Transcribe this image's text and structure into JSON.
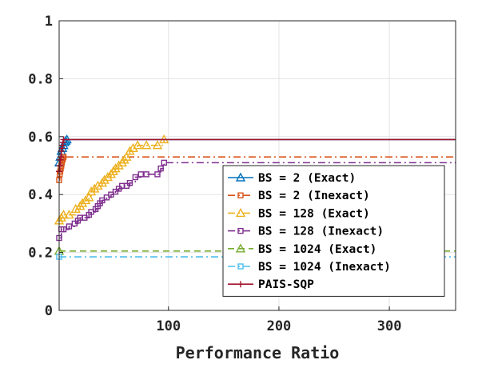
{
  "chart_data": {
    "type": "line",
    "title": "",
    "xlabel": "Performance Ratio",
    "ylabel": "",
    "xlim": [
      1,
      360
    ],
    "ylim": [
      0,
      1
    ],
    "xticks": [
      100,
      200,
      300
    ],
    "yticks": [
      0,
      0.2,
      0.4,
      0.6,
      0.8,
      1
    ],
    "ytick_labels": [
      "0",
      "0.2",
      "0.4",
      "0.6",
      "0.8",
      "1"
    ],
    "grid": true,
    "legend_position": "lower-right",
    "series": [
      {
        "name": "BS = 2 (Exact)",
        "color": "#0072BD",
        "style": "solid",
        "marker": "triangle",
        "x": [
          1,
          2,
          3,
          4,
          5,
          6,
          7,
          8,
          360
        ],
        "y": [
          0.51,
          0.53,
          0.55,
          0.56,
          0.57,
          0.58,
          0.585,
          0.59,
          0.59
        ]
      },
      {
        "name": "BS = 2 (Inexact)",
        "color": "#D95319",
        "style": "dashdot",
        "marker": "square",
        "x": [
          1,
          1.5,
          2,
          2.5,
          3,
          3.5,
          4,
          4.5,
          5,
          360
        ],
        "y": [
          0.45,
          0.47,
          0.48,
          0.49,
          0.5,
          0.51,
          0.52,
          0.525,
          0.53,
          0.53
        ]
      },
      {
        "name": "BS = 128 (Exact)",
        "color": "#EDB120",
        "style": "dashdot",
        "marker": "triangle",
        "x": [
          1,
          3,
          5,
          10,
          16,
          20,
          22,
          25,
          28,
          30,
          33,
          36,
          40,
          42,
          45,
          48,
          50,
          52,
          55,
          58,
          60,
          62,
          65,
          68,
          72,
          80,
          90,
          96
        ],
        "y": [
          0.31,
          0.32,
          0.33,
          0.33,
          0.35,
          0.36,
          0.37,
          0.38,
          0.39,
          0.41,
          0.42,
          0.43,
          0.44,
          0.45,
          0.46,
          0.47,
          0.48,
          0.49,
          0.5,
          0.51,
          0.52,
          0.53,
          0.55,
          0.56,
          0.57,
          0.57,
          0.57,
          0.59
        ]
      },
      {
        "name": "BS = 128 (Inexact)",
        "color": "#7E2F8E",
        "style": "dashdot",
        "marker": "square",
        "x": [
          1,
          3,
          5,
          10,
          15,
          18,
          20,
          24,
          28,
          30,
          34,
          36,
          38,
          40,
          44,
          48,
          52,
          55,
          58,
          62,
          65,
          70,
          75,
          80,
          90,
          93,
          96,
          360
        ],
        "y": [
          0.25,
          0.28,
          0.28,
          0.29,
          0.3,
          0.31,
          0.32,
          0.32,
          0.33,
          0.34,
          0.35,
          0.36,
          0.37,
          0.38,
          0.39,
          0.4,
          0.41,
          0.42,
          0.43,
          0.43,
          0.44,
          0.46,
          0.47,
          0.47,
          0.47,
          0.49,
          0.51,
          0.51
        ]
      },
      {
        "name": "BS = 1024 (Exact)",
        "color": "#77AC30",
        "style": "dashed",
        "marker": "triangle",
        "x": [
          1,
          360
        ],
        "y": [
          0.205,
          0.205
        ]
      },
      {
        "name": "BS = 1024 (Inexact)",
        "color": "#4DBEEE",
        "style": "dashdot",
        "marker": "square",
        "x": [
          1,
          360
        ],
        "y": [
          0.185,
          0.185
        ]
      },
      {
        "name": "PAIS-SQP",
        "color": "#A2142F",
        "style": "solid",
        "marker": "plus",
        "x": [
          1,
          1.5,
          2,
          2.5,
          3,
          3.5,
          4,
          4.5,
          5,
          360
        ],
        "y": [
          0.48,
          0.5,
          0.52,
          0.53,
          0.55,
          0.56,
          0.57,
          0.58,
          0.59,
          0.59
        ]
      }
    ]
  }
}
